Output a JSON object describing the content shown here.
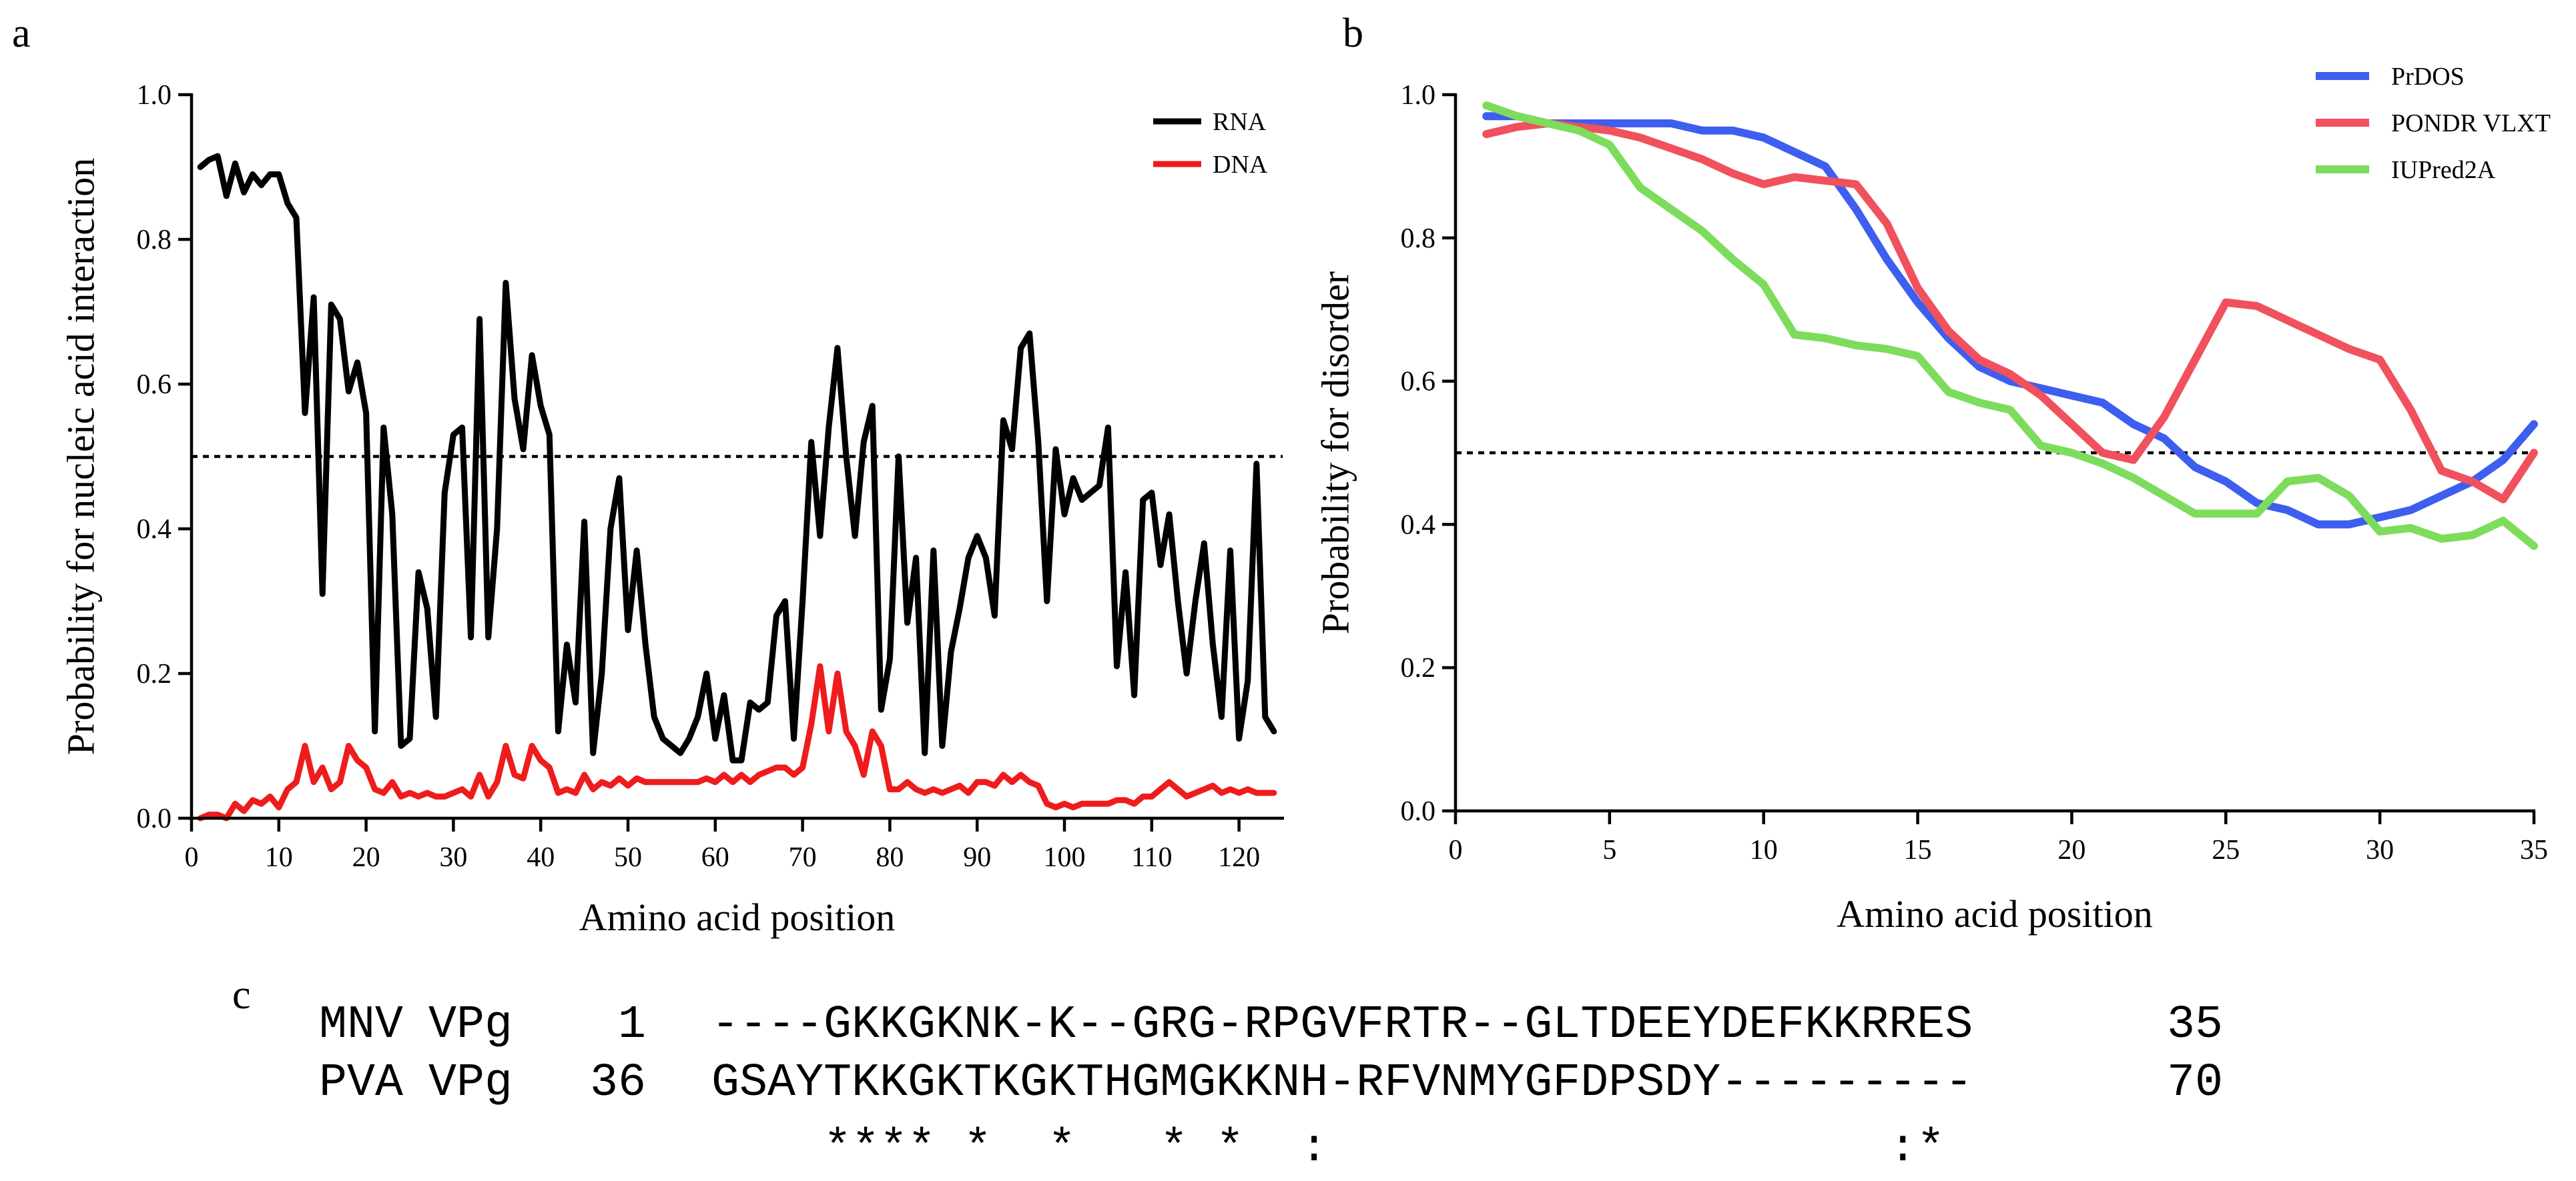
{
  "chart_data": [
    {
      "panel": "a",
      "type": "line",
      "title": "",
      "xlabel": "Amino acid position",
      "ylabel": "Probability for nucleic acid interaction",
      "xlim": [
        0,
        125
      ],
      "ylim": [
        0,
        1.0
      ],
      "xticks": [
        0,
        10,
        20,
        30,
        40,
        50,
        60,
        70,
        80,
        90,
        100,
        110,
        120
      ],
      "yticks": [
        0.0,
        0.2,
        0.4,
        0.6,
        0.8,
        1.0
      ],
      "ytick_labels": [
        "0.0",
        "0.2",
        "0.4",
        "0.6",
        "0.8",
        "1.0"
      ],
      "threshold": 0.5,
      "legend_position": "top-right",
      "series": [
        {
          "name": "RNA",
          "color": "#000000",
          "x": [
            1,
            2,
            3,
            4,
            5,
            6,
            7,
            8,
            9,
            10,
            11,
            12,
            13,
            14,
            15,
            16,
            17,
            18,
            19,
            20,
            21,
            22,
            23,
            24,
            25,
            26,
            27,
            28,
            29,
            30,
            31,
            32,
            33,
            34,
            35,
            36,
            37,
            38,
            39,
            40,
            41,
            42,
            43,
            44,
            45,
            46,
            47,
            48,
            49,
            50,
            51,
            52,
            53,
            54,
            55,
            56,
            57,
            58,
            59,
            60,
            61,
            62,
            63,
            64,
            65,
            66,
            67,
            68,
            69,
            70,
            71,
            72,
            73,
            74,
            75,
            76,
            77,
            78,
            79,
            80,
            81,
            82,
            83,
            84,
            85,
            86,
            87,
            88,
            89,
            90,
            91,
            92,
            93,
            94,
            95,
            96,
            97,
            98,
            99,
            100,
            101,
            102,
            103,
            104,
            105,
            106,
            107,
            108,
            109,
            110,
            111,
            112,
            113,
            114,
            115,
            116,
            117,
            118,
            119,
            120,
            121,
            122,
            123,
            124
          ],
          "values": [
            0.9,
            0.91,
            0.915,
            0.86,
            0.905,
            0.865,
            0.89,
            0.875,
            0.89,
            0.89,
            0.85,
            0.83,
            0.56,
            0.72,
            0.31,
            0.71,
            0.69,
            0.59,
            0.63,
            0.56,
            0.12,
            0.54,
            0.42,
            0.1,
            0.11,
            0.34,
            0.29,
            0.14,
            0.45,
            0.53,
            0.54,
            0.25,
            0.69,
            0.25,
            0.4,
            0.74,
            0.58,
            0.51,
            0.64,
            0.57,
            0.53,
            0.12,
            0.24,
            0.16,
            0.41,
            0.09,
            0.2,
            0.4,
            0.47,
            0.26,
            0.37,
            0.24,
            0.14,
            0.11,
            0.1,
            0.09,
            0.11,
            0.14,
            0.2,
            0.11,
            0.17,
            0.08,
            0.08,
            0.16,
            0.15,
            0.16,
            0.28,
            0.3,
            0.11,
            0.3,
            0.52,
            0.39,
            0.54,
            0.65,
            0.5,
            0.39,
            0.52,
            0.57,
            0.15,
            0.22,
            0.5,
            0.27,
            0.36,
            0.09,
            0.37,
            0.1,
            0.23,
            0.29,
            0.36,
            0.39,
            0.36,
            0.28,
            0.55,
            0.51,
            0.65,
            0.67,
            0.52,
            0.3,
            0.51,
            0.42,
            0.47,
            0.44,
            0.45,
            0.46,
            0.54,
            0.21,
            0.34,
            0.17,
            0.44,
            0.45,
            0.35,
            0.42,
            0.3,
            0.2,
            0.3,
            0.38,
            0.24,
            0.14,
            0.37,
            0.11,
            0.19,
            0.49,
            0.14,
            0.12
          ]
        },
        {
          "name": "DNA",
          "color": "#ee1c1c",
          "x": [
            1,
            2,
            3,
            4,
            5,
            6,
            7,
            8,
            9,
            10,
            11,
            12,
            13,
            14,
            15,
            16,
            17,
            18,
            19,
            20,
            21,
            22,
            23,
            24,
            25,
            26,
            27,
            28,
            29,
            30,
            31,
            32,
            33,
            34,
            35,
            36,
            37,
            38,
            39,
            40,
            41,
            42,
            43,
            44,
            45,
            46,
            47,
            48,
            49,
            50,
            51,
            52,
            53,
            54,
            55,
            56,
            57,
            58,
            59,
            60,
            61,
            62,
            63,
            64,
            65,
            66,
            67,
            68,
            69,
            70,
            71,
            72,
            73,
            74,
            75,
            76,
            77,
            78,
            79,
            80,
            81,
            82,
            83,
            84,
            85,
            86,
            87,
            88,
            89,
            90,
            91,
            92,
            93,
            94,
            95,
            96,
            97,
            98,
            99,
            100,
            101,
            102,
            103,
            104,
            105,
            106,
            107,
            108,
            109,
            110,
            111,
            112,
            113,
            114,
            115,
            116,
            117,
            118,
            119,
            120,
            121,
            122,
            123,
            124
          ],
          "values": [
            0.0,
            0.005,
            0.005,
            0.0,
            0.02,
            0.01,
            0.025,
            0.02,
            0.03,
            0.015,
            0.04,
            0.05,
            0.1,
            0.05,
            0.07,
            0.04,
            0.05,
            0.1,
            0.08,
            0.07,
            0.04,
            0.035,
            0.05,
            0.03,
            0.035,
            0.03,
            0.035,
            0.03,
            0.03,
            0.035,
            0.04,
            0.03,
            0.06,
            0.03,
            0.05,
            0.1,
            0.06,
            0.055,
            0.1,
            0.08,
            0.07,
            0.035,
            0.04,
            0.035,
            0.06,
            0.04,
            0.05,
            0.045,
            0.055,
            0.045,
            0.055,
            0.05,
            0.05,
            0.05,
            0.05,
            0.05,
            0.05,
            0.05,
            0.055,
            0.05,
            0.06,
            0.05,
            0.06,
            0.05,
            0.06,
            0.065,
            0.07,
            0.07,
            0.06,
            0.07,
            0.13,
            0.21,
            0.12,
            0.2,
            0.12,
            0.1,
            0.06,
            0.12,
            0.1,
            0.04,
            0.04,
            0.05,
            0.04,
            0.035,
            0.04,
            0.035,
            0.04,
            0.045,
            0.035,
            0.05,
            0.05,
            0.045,
            0.06,
            0.05,
            0.06,
            0.05,
            0.045,
            0.02,
            0.015,
            0.02,
            0.015,
            0.02,
            0.02,
            0.02,
            0.02,
            0.025,
            0.025,
            0.02,
            0.03,
            0.03,
            0.04,
            0.05,
            0.04,
            0.03,
            0.035,
            0.04,
            0.045,
            0.035,
            0.04,
            0.035,
            0.04,
            0.035,
            0.035,
            0.035
          ]
        }
      ]
    },
    {
      "panel": "b",
      "type": "line",
      "title": "",
      "xlabel": "Amino acid position",
      "ylabel": "Probability for  disorder",
      "xlim": [
        0,
        35
      ],
      "ylim": [
        0,
        1.0
      ],
      "xticks": [
        0,
        5,
        10,
        15,
        20,
        25,
        30,
        35
      ],
      "yticks": [
        0.0,
        0.2,
        0.4,
        0.6,
        0.8,
        1.0
      ],
      "ytick_labels": [
        "0.0",
        "0.2",
        "0.4",
        "0.6",
        "0.8",
        "1.0"
      ],
      "threshold": 0.5,
      "legend_position": "top-right",
      "series": [
        {
          "name": "PrDOS",
          "color": "#3e5ef0",
          "x": [
            1,
            2,
            3,
            4,
            5,
            6,
            7,
            8,
            9,
            10,
            11,
            12,
            13,
            14,
            15,
            16,
            17,
            18,
            19,
            20,
            21,
            22,
            23,
            24,
            25,
            26,
            27,
            28,
            29,
            30,
            31,
            32,
            33,
            34,
            35
          ],
          "values": [
            0.97,
            0.97,
            0.96,
            0.96,
            0.96,
            0.96,
            0.96,
            0.95,
            0.95,
            0.94,
            0.92,
            0.9,
            0.84,
            0.77,
            0.71,
            0.66,
            0.62,
            0.6,
            0.59,
            0.58,
            0.57,
            0.54,
            0.52,
            0.48,
            0.46,
            0.43,
            0.42,
            0.4,
            0.4,
            0.41,
            0.42,
            0.44,
            0.46,
            0.49,
            0.54
          ]
        },
        {
          "name": "PONDR VLXT",
          "color": "#f0515c",
          "x": [
            1,
            2,
            3,
            4,
            5,
            6,
            7,
            8,
            9,
            10,
            11,
            12,
            13,
            14,
            15,
            16,
            17,
            18,
            19,
            20,
            21,
            22,
            23,
            24,
            25,
            26,
            27,
            28,
            29,
            30,
            31,
            32,
            33,
            34,
            35
          ],
          "values": [
            0.945,
            0.955,
            0.96,
            0.955,
            0.95,
            0.94,
            0.925,
            0.91,
            0.89,
            0.875,
            0.885,
            0.88,
            0.875,
            0.82,
            0.73,
            0.67,
            0.63,
            0.61,
            0.58,
            0.54,
            0.5,
            0.49,
            0.55,
            0.63,
            0.71,
            0.705,
            0.685,
            0.665,
            0.645,
            0.63,
            0.56,
            0.475,
            0.46,
            0.435,
            0.5
          ]
        },
        {
          "name": "IUPred2A",
          "color": "#7ddc5c",
          "x": [
            1,
            2,
            3,
            4,
            5,
            6,
            7,
            8,
            9,
            10,
            11,
            12,
            13,
            14,
            15,
            16,
            17,
            18,
            19,
            20,
            21,
            22,
            23,
            24,
            25,
            26,
            27,
            28,
            29,
            30,
            31,
            32,
            33,
            34,
            35
          ],
          "values": [
            0.985,
            0.97,
            0.96,
            0.95,
            0.93,
            0.87,
            0.84,
            0.81,
            0.77,
            0.735,
            0.665,
            0.66,
            0.65,
            0.645,
            0.635,
            0.585,
            0.57,
            0.56,
            0.51,
            0.5,
            0.485,
            0.465,
            0.44,
            0.415,
            0.415,
            0.415,
            0.46,
            0.465,
            0.44,
            0.39,
            0.395,
            0.38,
            0.385,
            0.405,
            0.37
          ]
        }
      ]
    }
  ],
  "panels": {
    "a": {
      "letter": "a"
    },
    "b": {
      "letter": "b"
    },
    "c": {
      "letter": "c"
    }
  },
  "alignment": {
    "rows": [
      {
        "name": "MNV",
        "label": "VPg",
        "start": "1",
        "sequence": "----GKKGKNK-K--GRG-RPGVFRTR--GLTDEEYDEFKKRRES",
        "end": "35"
      },
      {
        "name": "PVA",
        "label": "VPg",
        "start": "36",
        "sequence": "GSAYTKKGKTKGKTHGMGKKNH-RFVNMYGFDPSDY---------",
        "end": "70"
      }
    ],
    "conservation": "    **** *  *   * *  :                    :*"
  }
}
